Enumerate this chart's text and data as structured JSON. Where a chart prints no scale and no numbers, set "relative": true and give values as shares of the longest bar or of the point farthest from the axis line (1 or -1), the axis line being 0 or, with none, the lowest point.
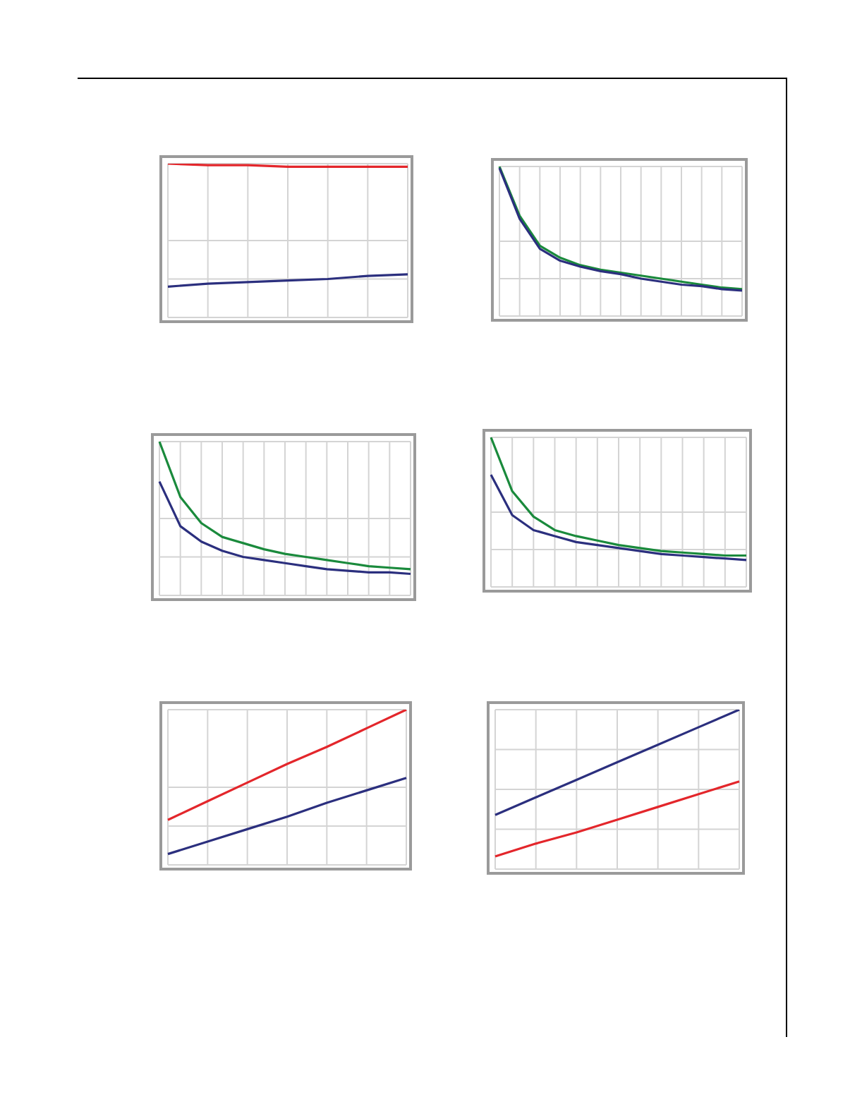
{
  "chart_data": [
    {
      "type": "line",
      "relative": true,
      "grid": true,
      "tick_labels": false,
      "categories": [
        null,
        null,
        null,
        null,
        null,
        null,
        null
      ],
      "series": [
        {
          "color": "#e3262b",
          "values": [
            1,
            0.99,
            0.99,
            0.98,
            0.98,
            0.98,
            0.98
          ]
        },
        {
          "color": "#2b2f7e",
          "values": [
            0.2,
            0.22,
            0.23,
            0.24,
            0.25,
            0.27,
            0.28
          ]
        }
      ]
    },
    {
      "type": "line",
      "relative": true,
      "grid": true,
      "tick_labels": false,
      "categories": [
        null,
        null,
        null,
        null,
        null,
        null,
        null,
        null,
        null,
        null,
        null,
        null,
        null
      ],
      "series": [
        {
          "color": "#1a8a3c",
          "values": [
            1,
            0.67,
            0.47,
            0.39,
            0.34,
            0.31,
            0.29,
            0.27,
            0.25,
            0.23,
            0.21,
            0.19,
            0.18
          ]
        },
        {
          "color": "#2b2f7e",
          "values": [
            0.99,
            0.65,
            0.45,
            0.37,
            0.33,
            0.3,
            0.28,
            0.25,
            0.23,
            0.21,
            0.2,
            0.18,
            0.17
          ]
        }
      ]
    },
    {
      "type": "line",
      "relative": true,
      "grid": true,
      "tick_labels": false,
      "categories": [
        null,
        null,
        null,
        null,
        null,
        null,
        null,
        null,
        null,
        null,
        null,
        null,
        null
      ],
      "series": [
        {
          "color": "#1a8a3c",
          "values": [
            1,
            0.64,
            0.47,
            0.38,
            0.34,
            0.3,
            0.27,
            0.25,
            0.23,
            0.21,
            0.19,
            0.18,
            0.17
          ]
        },
        {
          "color": "#2b2f7e",
          "values": [
            0.74,
            0.45,
            0.35,
            0.29,
            0.25,
            0.23,
            0.21,
            0.19,
            0.17,
            0.16,
            0.15,
            0.15,
            0.14
          ]
        }
      ]
    },
    {
      "type": "line",
      "relative": true,
      "grid": true,
      "tick_labels": false,
      "categories": [
        null,
        null,
        null,
        null,
        null,
        null,
        null,
        null,
        null,
        null,
        null,
        null,
        null
      ],
      "series": [
        {
          "color": "#1a8a3c",
          "values": [
            1,
            0.64,
            0.47,
            0.38,
            0.34,
            0.31,
            0.28,
            0.26,
            0.24,
            0.23,
            0.22,
            0.21,
            0.21
          ]
        },
        {
          "color": "#2b2f7e",
          "values": [
            0.75,
            0.48,
            0.38,
            0.34,
            0.3,
            0.28,
            0.26,
            0.24,
            0.22,
            0.21,
            0.2,
            0.19,
            0.18
          ]
        }
      ]
    },
    {
      "type": "line",
      "relative": true,
      "grid": true,
      "tick_labels": false,
      "categories": [
        null,
        null,
        null,
        null,
        null,
        null,
        null
      ],
      "series": [
        {
          "color": "#e3262b",
          "values": [
            0.29,
            0.41,
            0.53,
            0.65,
            0.76,
            0.88,
            1
          ]
        },
        {
          "color": "#2b2f7e",
          "values": [
            0.07,
            0.15,
            0.23,
            0.31,
            0.4,
            0.48,
            0.56
          ]
        }
      ]
    },
    {
      "type": "line",
      "relative": true,
      "grid": true,
      "tick_labels": false,
      "categories": [
        null,
        null,
        null,
        null,
        null,
        null,
        null
      ],
      "series": [
        {
          "color": "#2b2f7e",
          "values": [
            0.34,
            0.45,
            0.56,
            0.67,
            0.78,
            0.89,
            1
          ]
        },
        {
          "color": "#e3262b",
          "values": [
            0.08,
            0.16,
            0.23,
            0.31,
            0.39,
            0.47,
            0.55
          ]
        }
      ]
    }
  ]
}
